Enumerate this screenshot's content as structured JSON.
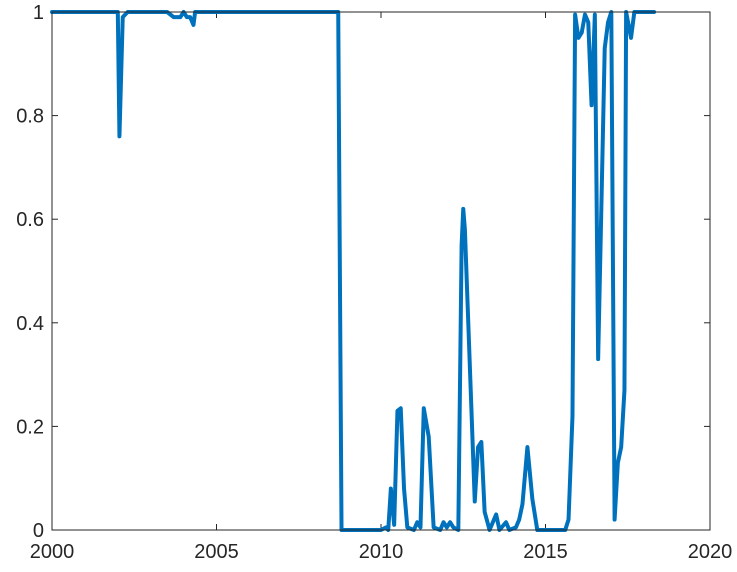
{
  "chart_data": {
    "type": "line",
    "title": "",
    "xlabel": "",
    "ylabel": "",
    "xlim": [
      2000,
      2020
    ],
    "ylim": [
      0,
      1
    ],
    "xticks": [
      2000,
      2005,
      2010,
      2015,
      2020
    ],
    "yticks": [
      0,
      0.2,
      0.4,
      0.6,
      0.8,
      1
    ],
    "xtick_labels": [
      "2000",
      "2005",
      "2010",
      "2015",
      "2020"
    ],
    "ytick_labels": [
      "0",
      "0.2",
      "0.4",
      "0.6",
      "0.8",
      "1"
    ],
    "grid": false,
    "line_color": "#0072BD",
    "series": [
      {
        "x": [
          2000.0,
          2002.0,
          2002.05,
          2002.15,
          2002.3,
          2003.5,
          2003.7,
          2003.9,
          2004.0,
          2004.1,
          2004.2,
          2004.3,
          2004.35,
          2004.45,
          2008.7,
          2008.8,
          2010.0,
          2010.15,
          2010.22,
          2010.3,
          2010.4,
          2010.5,
          2010.6,
          2010.7,
          2010.8,
          2011.0,
          2011.1,
          2011.2,
          2011.3,
          2011.45,
          2011.6,
          2011.8,
          2011.9,
          2012.0,
          2012.1,
          2012.2,
          2012.35,
          2012.45,
          2012.5,
          2012.55,
          2012.85,
          2012.95,
          2013.05,
          2013.15,
          2013.3,
          2013.5,
          2013.6,
          2013.8,
          2013.9,
          2014.1,
          2014.2,
          2014.3,
          2014.45,
          2014.6,
          2014.75,
          2015.6,
          2015.7,
          2015.82,
          2015.9,
          2016.0,
          2016.1,
          2016.2,
          2016.3,
          2016.4,
          2016.5,
          2016.6,
          2016.8,
          2016.9,
          2017.0,
          2017.1,
          2017.2,
          2017.3,
          2017.4,
          2017.45,
          2017.6,
          2017.7,
          2018.3
        ],
        "y": [
          1.0,
          1.0,
          0.76,
          0.99,
          1.0,
          1.0,
          0.99,
          0.99,
          1.0,
          0.99,
          0.99,
          0.975,
          1.0,
          1.0,
          1.0,
          0.0,
          0.0,
          0.005,
          0.0,
          0.08,
          0.01,
          0.23,
          0.235,
          0.08,
          0.005,
          0.0,
          0.015,
          0.005,
          0.235,
          0.18,
          0.005,
          0.0,
          0.015,
          0.005,
          0.015,
          0.005,
          0.0,
          0.55,
          0.62,
          0.58,
          0.055,
          0.16,
          0.17,
          0.035,
          0.0,
          0.03,
          0.0,
          0.015,
          0.0,
          0.005,
          0.02,
          0.05,
          0.16,
          0.06,
          0.0,
          0.0,
          0.02,
          0.22,
          0.995,
          0.95,
          0.96,
          0.995,
          0.98,
          0.82,
          0.995,
          0.33,
          0.93,
          0.98,
          1.0,
          0.02,
          0.13,
          0.16,
          0.27,
          1.0,
          0.95,
          1.0,
          1.0
        ]
      }
    ]
  }
}
